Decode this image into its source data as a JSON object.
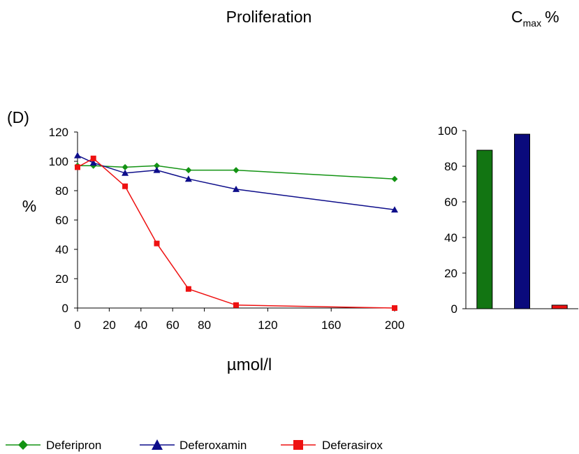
{
  "header": {
    "title": "Proliferation",
    "cmax_main": "C",
    "cmax_sub": "max",
    "cmax_unit": "%"
  },
  "panel_label": "(D)",
  "legend_items": [
    {
      "label": "Deferipron",
      "color": "#139313",
      "marker": "diamond"
    },
    {
      "label": "Deferoxamin",
      "color": "#0d0d8a",
      "marker": "triangle"
    },
    {
      "label": "Deferasirox",
      "color": "#ee1111",
      "marker": "square"
    }
  ],
  "chart_data": [
    {
      "type": "line",
      "xlabel": "µmol/l",
      "ylabel": "%",
      "x_ticks": [
        0,
        20,
        40,
        60,
        80,
        120,
        160,
        200
      ],
      "y_ticks": [
        0,
        20,
        40,
        60,
        80,
        100,
        120
      ],
      "xlim": [
        0,
        200
      ],
      "ylim": [
        0,
        120
      ],
      "grid": false,
      "legend_position": "bottom",
      "series": [
        {
          "name": "Deferipron",
          "color": "#139313",
          "marker": "diamond",
          "x": [
            0,
            10,
            30,
            50,
            70,
            100,
            200
          ],
          "y": [
            97,
            97,
            96,
            97,
            94,
            94,
            88
          ]
        },
        {
          "name": "Deferoxamin",
          "color": "#0d0d8a",
          "marker": "triangle",
          "x": [
            0,
            10,
            30,
            50,
            70,
            100,
            200
          ],
          "y": [
            104,
            99,
            92,
            94,
            88,
            81,
            67
          ]
        },
        {
          "name": "Deferasirox",
          "color": "#ee1111",
          "marker": "square",
          "x": [
            0,
            10,
            30,
            50,
            70,
            100,
            200
          ],
          "y": [
            96,
            102,
            83,
            44,
            13,
            2,
            0
          ]
        }
      ]
    },
    {
      "type": "bar",
      "categories": [
        "Deferipron",
        "Deferoxamin",
        "Deferasirox"
      ],
      "values": [
        89,
        98,
        2
      ],
      "colors": [
        "#127512",
        "#0a0a7c",
        "#ee1111"
      ],
      "y_ticks": [
        0,
        20,
        40,
        60,
        80,
        100
      ],
      "ylim": [
        0,
        100
      ],
      "grid": false
    }
  ]
}
